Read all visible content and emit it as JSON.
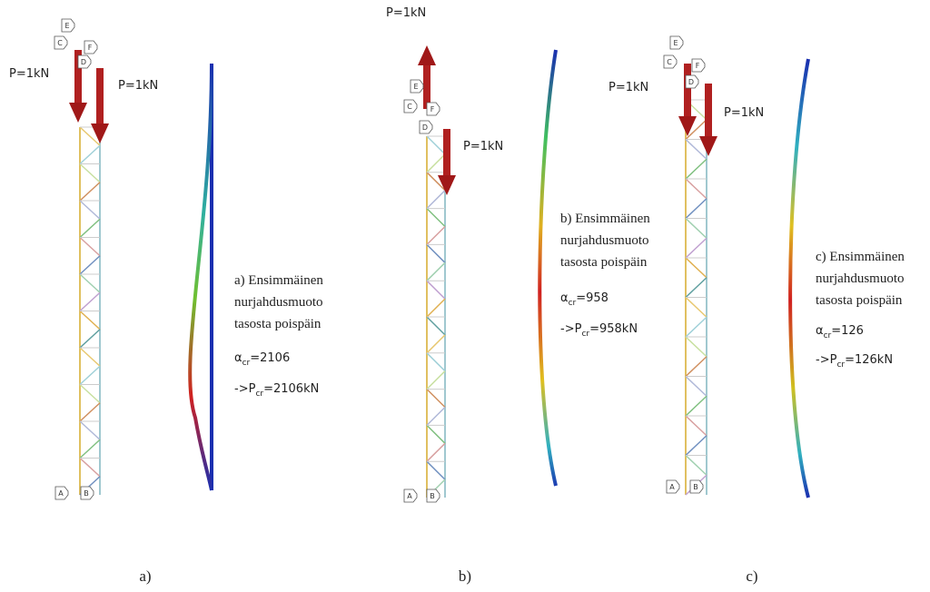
{
  "panels": [
    {
      "caption": "a)",
      "loads": [
        "P=1kN",
        "P=1kN"
      ],
      "node_labels": [
        "E",
        "C",
        "F",
        "D",
        "A",
        "B"
      ],
      "description": [
        "a) Ensimmäinen",
        "nurjahdusmuoto",
        "tasosta poispäin"
      ],
      "alpha": {
        "symbol": "α",
        "subscript": "cr",
        "value": "=2106"
      },
      "critical_load": {
        "symbol": "->P",
        "subscript": "cr",
        "value": "=2106kN"
      }
    },
    {
      "caption": "b)",
      "loads": [
        "P=1kN",
        "P=1kN"
      ],
      "node_labels": [
        "E",
        "C",
        "F",
        "D",
        "A",
        "B"
      ],
      "description": [
        "b) Ensimmäinen",
        "nurjahdusmuoto",
        "tasosta poispäin"
      ],
      "alpha": {
        "symbol": "α",
        "subscript": "cr",
        "value": "=958"
      },
      "critical_load": {
        "symbol": "->P",
        "subscript": "cr",
        "value": "=958kN"
      }
    },
    {
      "caption": "c)",
      "loads": [
        "P=1kN",
        "P=1kN"
      ],
      "node_labels": [
        "E",
        "C",
        "F",
        "D",
        "A",
        "B"
      ],
      "description": [
        "c) Ensimmäinen",
        "nurjahdusmuoto",
        "tasosta poispäin"
      ],
      "alpha": {
        "symbol": "α",
        "subscript": "cr",
        "value": "=126"
      },
      "critical_load": {
        "symbol": "->P",
        "subscript": "cr",
        "value": "=126kN"
      }
    }
  ]
}
